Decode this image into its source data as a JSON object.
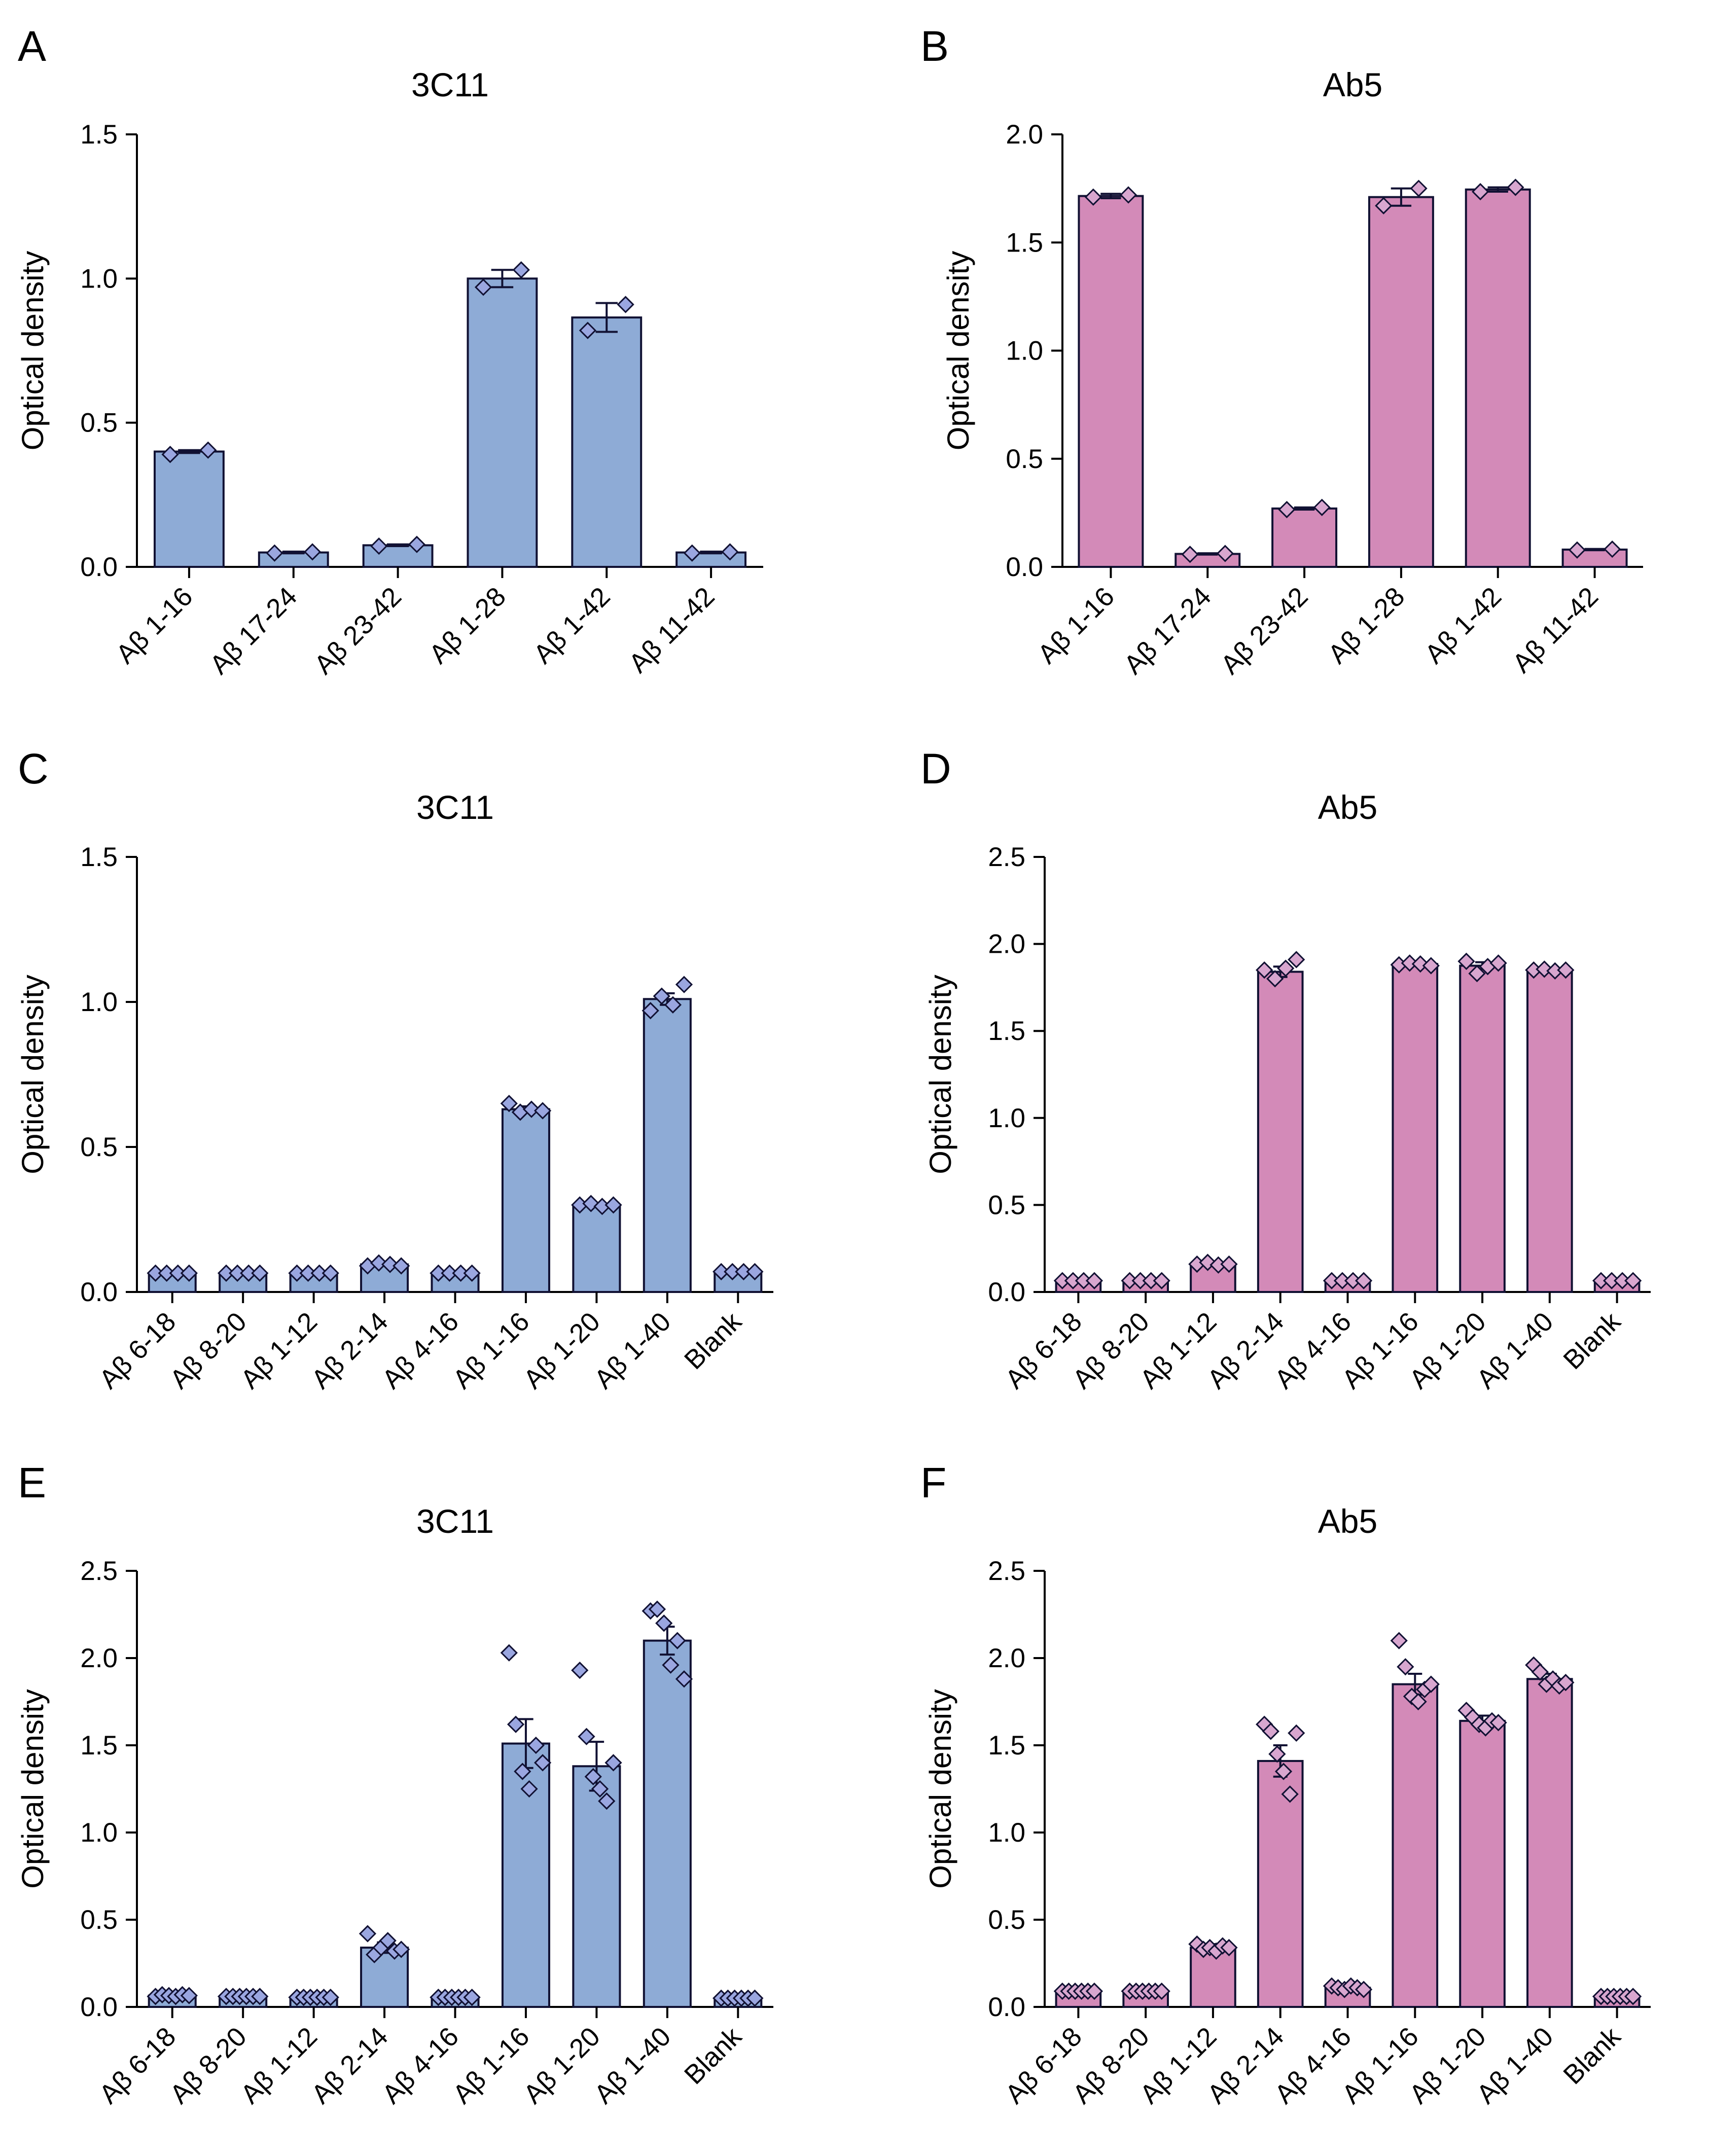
{
  "figure": {
    "colors": {
      "blue": "#8eabd6",
      "pink": "#d38ab8",
      "blue_point": "#9aa6e0",
      "pink_point": "#d8a6cf",
      "stroke": "#111133"
    }
  },
  "chart_data": [
    {
      "type": "bar",
      "panel": "A",
      "title": "3C11",
      "ylabel": "Optical density",
      "xlabel": "",
      "ylim": [
        0,
        1.5
      ],
      "yticks": [
        "0.0",
        "0.5",
        "1.0",
        "1.5"
      ],
      "color": "blue",
      "categories": [
        "Aβ 1-16",
        "Aβ 17-24",
        "Aβ 23-42",
        "Aβ 1-28",
        "Aβ 1-42",
        "Aβ 11-42"
      ],
      "values": [
        0.4,
        0.05,
        0.075,
        1.0,
        0.865,
        0.05
      ],
      "errors": [
        0.005,
        0.003,
        0.003,
        0.03,
        0.05,
        0.003
      ],
      "points": [
        [
          0.39,
          0.405
        ],
        [
          0.048,
          0.052
        ],
        [
          0.072,
          0.078
        ],
        [
          0.97,
          1.03
        ],
        [
          0.82,
          0.91
        ],
        [
          0.048,
          0.052
        ]
      ]
    },
    {
      "type": "bar",
      "panel": "B",
      "title": "Ab5",
      "ylabel": "Optical density",
      "xlabel": "",
      "ylim": [
        0,
        2.0
      ],
      "yticks": [
        "0.0",
        "0.5",
        "1.0",
        "1.5",
        "2.0"
      ],
      "color": "pink",
      "categories": [
        "Aβ 1-16",
        "Aβ 17-24",
        "Aβ 23-42",
        "Aβ 1-28",
        "Aβ 1-42",
        "Aβ 11-42"
      ],
      "values": [
        1.715,
        0.06,
        0.27,
        1.71,
        1.745,
        0.08
      ],
      "errors": [
        0.01,
        0.003,
        0.005,
        0.04,
        0.01,
        0.003
      ],
      "points": [
        [
          1.71,
          1.72
        ],
        [
          0.058,
          0.062
        ],
        [
          0.265,
          0.275
        ],
        [
          1.67,
          1.75
        ],
        [
          1.735,
          1.755
        ],
        [
          0.078,
          0.082
        ]
      ]
    },
    {
      "type": "bar",
      "panel": "C",
      "title": "3C11",
      "ylabel": "Optical density",
      "xlabel": "",
      "ylim": [
        0,
        1.5
      ],
      "yticks": [
        "0.0",
        "0.5",
        "1.0",
        "1.5"
      ],
      "color": "blue",
      "categories": [
        "Aβ 6-18",
        "Aβ 8-20",
        "Aβ 1-12",
        "Aβ 2-14",
        "Aβ 4-16",
        "Aβ 1-16",
        "Aβ 1-20",
        "Aβ 1-40",
        "Blank"
      ],
      "values": [
        0.065,
        0.065,
        0.065,
        0.095,
        0.065,
        0.63,
        0.3,
        1.01,
        0.07
      ],
      "errors": [
        0.002,
        0.002,
        0.002,
        0.005,
        0.002,
        0.01,
        0.005,
        0.02,
        0.002
      ],
      "points": [
        [
          0.065,
          0.065,
          0.065,
          0.065
        ],
        [
          0.065,
          0.065,
          0.065,
          0.065
        ],
        [
          0.065,
          0.065,
          0.065,
          0.065
        ],
        [
          0.09,
          0.1,
          0.095,
          0.09
        ],
        [
          0.065,
          0.065,
          0.065,
          0.065
        ],
        [
          0.65,
          0.62,
          0.63,
          0.625
        ],
        [
          0.3,
          0.305,
          0.295,
          0.3
        ],
        [
          0.97,
          1.02,
          0.99,
          1.06
        ],
        [
          0.07,
          0.07,
          0.07,
          0.07
        ]
      ]
    },
    {
      "type": "bar",
      "panel": "D",
      "title": "Ab5",
      "ylabel": "Optical density",
      "xlabel": "",
      "ylim": [
        0,
        2.5
      ],
      "yticks": [
        "0.0",
        "0.5",
        "1.0",
        "1.5",
        "2.0",
        "2.5"
      ],
      "color": "pink",
      "categories": [
        "Aβ 6-18",
        "Aβ 8-20",
        "Aβ 1-12",
        "Aβ 2-14",
        "Aβ 4-16",
        "Aβ 1-16",
        "Aβ 1-20",
        "Aβ 1-40",
        "Blank"
      ],
      "values": [
        0.065,
        0.065,
        0.16,
        1.84,
        0.065,
        1.885,
        1.875,
        1.85,
        0.065
      ],
      "errors": [
        0.002,
        0.002,
        0.005,
        0.03,
        0.002,
        0.01,
        0.02,
        0.01,
        0.002
      ],
      "points": [
        [
          0.065,
          0.065,
          0.065,
          0.065
        ],
        [
          0.065,
          0.065,
          0.065,
          0.065
        ],
        [
          0.16,
          0.17,
          0.155,
          0.16
        ],
        [
          1.85,
          1.8,
          1.86,
          1.91
        ],
        [
          0.065,
          0.065,
          0.065,
          0.065
        ],
        [
          1.88,
          1.89,
          1.885,
          1.875
        ],
        [
          1.9,
          1.83,
          1.87,
          1.89
        ],
        [
          1.85,
          1.855,
          1.845,
          1.85
        ],
        [
          0.065,
          0.065,
          0.065,
          0.065
        ]
      ]
    },
    {
      "type": "bar",
      "panel": "E",
      "title": "3C11",
      "ylabel": "Optical density",
      "xlabel": "",
      "ylim": [
        0,
        2.5
      ],
      "yticks": [
        "0.0",
        "0.5",
        "1.0",
        "1.5",
        "2.0",
        "2.5"
      ],
      "color": "blue",
      "categories": [
        "Aβ 6-18",
        "Aβ 8-20",
        "Aβ 1-12",
        "Aβ 2-14",
        "Aβ 4-16",
        "Aβ 1-16",
        "Aβ 1-20",
        "Aβ 1-40",
        "Blank"
      ],
      "values": [
        0.065,
        0.06,
        0.055,
        0.34,
        0.055,
        1.51,
        1.38,
        2.1,
        0.05
      ],
      "errors": [
        0.005,
        0.003,
        0.003,
        0.03,
        0.003,
        0.14,
        0.14,
        0.08,
        0.003
      ],
      "points": [
        [
          0.06,
          0.07,
          0.065,
          0.06,
          0.07,
          0.065
        ],
        [
          0.06,
          0.06,
          0.06,
          0.06,
          0.06,
          0.06
        ],
        [
          0.055,
          0.055,
          0.055,
          0.055,
          0.055,
          0.055
        ],
        [
          0.42,
          0.3,
          0.34,
          0.38,
          0.32,
          0.33
        ],
        [
          0.055,
          0.055,
          0.055,
          0.055,
          0.055,
          0.055
        ],
        [
          2.03,
          1.62,
          1.35,
          1.25,
          1.5,
          1.4
        ],
        [
          1.93,
          1.55,
          1.32,
          1.25,
          1.18,
          1.4
        ],
        [
          2.27,
          2.28,
          2.2,
          1.96,
          2.1,
          1.88
        ],
        [
          0.05,
          0.05,
          0.05,
          0.05,
          0.05,
          0.05
        ]
      ]
    },
    {
      "type": "bar",
      "panel": "F",
      "title": "Ab5",
      "ylabel": "Optical density",
      "xlabel": "",
      "ylim": [
        0,
        2.5
      ],
      "yticks": [
        "0.0",
        "0.5",
        "1.0",
        "1.5",
        "2.0",
        "2.5"
      ],
      "color": "pink",
      "categories": [
        "Aβ 6-18",
        "Aβ 8-20",
        "Aβ 1-12",
        "Aβ 2-14",
        "Aβ 4-16",
        "Aβ 1-16",
        "Aβ 1-20",
        "Aβ 1-40",
        "Blank"
      ],
      "values": [
        0.09,
        0.09,
        0.34,
        1.41,
        0.11,
        1.85,
        1.64,
        1.88,
        0.06
      ],
      "errors": [
        0.005,
        0.005,
        0.02,
        0.09,
        0.01,
        0.06,
        0.03,
        0.03,
        0.003
      ],
      "points": [
        [
          0.09,
          0.09,
          0.09,
          0.09,
          0.09,
          0.09
        ],
        [
          0.09,
          0.09,
          0.09,
          0.09,
          0.09,
          0.09
        ],
        [
          0.36,
          0.33,
          0.34,
          0.32,
          0.35,
          0.34
        ],
        [
          1.62,
          1.58,
          1.45,
          1.35,
          1.22,
          1.57
        ],
        [
          0.12,
          0.11,
          0.1,
          0.12,
          0.11,
          0.1
        ],
        [
          2.1,
          1.95,
          1.78,
          1.75,
          1.82,
          1.85
        ],
        [
          1.7,
          1.66,
          1.62,
          1.6,
          1.64,
          1.63
        ],
        [
          1.96,
          1.92,
          1.85,
          1.88,
          1.84,
          1.86
        ],
        [
          0.06,
          0.06,
          0.06,
          0.06,
          0.06,
          0.06
        ]
      ]
    }
  ]
}
